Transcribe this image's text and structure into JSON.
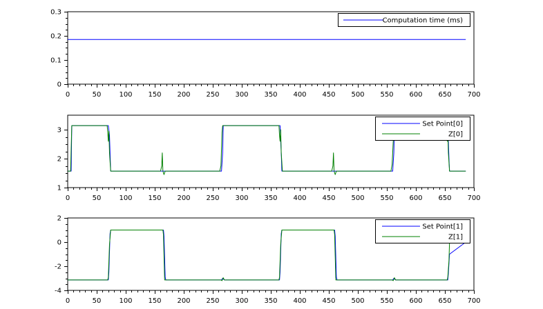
{
  "chart_data": [
    {
      "type": "line",
      "title": "",
      "xlabel": "",
      "ylabel": "",
      "xlim": [
        0,
        700
      ],
      "ylim": [
        0,
        0.3
      ],
      "xticks": [
        0,
        50,
        100,
        150,
        200,
        250,
        300,
        350,
        400,
        450,
        500,
        550,
        600,
        650,
        700
      ],
      "yticks": [
        0,
        0.1,
        0.2,
        0.3
      ],
      "xtick_labels": [
        "0",
        "50",
        "100",
        "150",
        "200",
        "250",
        "300",
        "350",
        "400",
        "450",
        "500",
        "550",
        "600",
        "650",
        "700"
      ],
      "ytick_labels": [
        "0",
        "0.1",
        "0.2",
        "0.3"
      ],
      "legend_position": "top-right",
      "series": [
        {
          "name": "Computation time (ms)",
          "color": "#0000ff",
          "x": [
            0,
            686
          ],
          "y": [
            0.185,
            0.185
          ]
        }
      ]
    },
    {
      "type": "line",
      "title": "",
      "xlabel": "",
      "ylabel": "",
      "xlim": [
        0,
        700
      ],
      "ylim": [
        1,
        3.5
      ],
      "xticks": [
        0,
        50,
        100,
        150,
        200,
        250,
        300,
        350,
        400,
        450,
        500,
        550,
        600,
        650,
        700
      ],
      "yticks": [
        1,
        2,
        3
      ],
      "xtick_labels": [
        "0",
        "50",
        "100",
        "150",
        "200",
        "250",
        "300",
        "350",
        "400",
        "450",
        "500",
        "550",
        "600",
        "650",
        "700"
      ],
      "ytick_labels": [
        "1",
        "2",
        "3"
      ],
      "legend_position": "top-right",
      "series": [
        {
          "name": "Set Point[0]",
          "color": "#0000ff",
          "x": [
            0,
            6,
            7,
            69,
            70,
            72,
            73,
            74,
            265,
            267,
            268,
            366,
            368,
            369,
            560,
            562,
            563,
            655,
            657,
            658,
            686
          ],
          "y": [
            1.57,
            1.57,
            3.14,
            3.14,
            3.14,
            2.8,
            2.2,
            1.57,
            1.57,
            2.2,
            3.14,
            3.14,
            2.2,
            1.57,
            1.57,
            2.2,
            3.14,
            3.14,
            2.0,
            1.57,
            1.57
          ]
        },
        {
          "name": "Z[0]",
          "color": "#008000",
          "x": [
            0,
            5,
            7,
            68,
            69,
            70,
            71,
            72,
            74,
            76,
            160,
            162,
            163,
            164,
            166,
            168,
            262,
            264,
            266,
            267,
            364,
            365,
            366,
            367,
            368,
            370,
            455,
            457,
            458,
            459,
            461,
            463,
            557,
            559,
            561,
            562,
            652,
            653,
            654,
            655,
            656,
            658,
            686
          ],
          "y": [
            1.57,
            1.57,
            3.14,
            3.14,
            2.9,
            2.6,
            2.95,
            2.2,
            1.57,
            1.57,
            1.57,
            1.75,
            2.2,
            1.57,
            1.45,
            1.57,
            1.57,
            1.75,
            2.9,
            3.14,
            3.14,
            2.8,
            2.6,
            3.0,
            2.2,
            1.57,
            1.57,
            1.75,
            2.2,
            1.57,
            1.45,
            1.57,
            1.57,
            1.8,
            2.6,
            3.14,
            3.14,
            2.75,
            2.6,
            2.95,
            2.2,
            1.57,
            1.57
          ]
        }
      ]
    },
    {
      "type": "line",
      "title": "",
      "xlabel": "",
      "ylabel": "",
      "xlim": [
        0,
        700
      ],
      "ylim": [
        -4,
        2
      ],
      "xticks": [
        0,
        50,
        100,
        150,
        200,
        250,
        300,
        350,
        400,
        450,
        500,
        550,
        600,
        650,
        700
      ],
      "yticks": [
        -4,
        -2,
        0,
        2
      ],
      "xtick_labels": [
        "0",
        "50",
        "100",
        "150",
        "200",
        "250",
        "300",
        "350",
        "400",
        "450",
        "500",
        "550",
        "600",
        "650",
        "700"
      ],
      "ytick_labels": [
        "-4",
        "-2",
        "0",
        "2"
      ],
      "legend_position": "top-right",
      "series": [
        {
          "name": "Set Point[1]",
          "color": "#0000ff",
          "x": [
            0,
            70,
            71,
            73,
            74,
            165,
            166,
            168,
            169,
            265,
            267,
            270,
            365,
            366,
            368,
            369,
            460,
            461,
            463,
            464,
            560,
            562,
            565,
            655,
            656,
            658,
            686
          ],
          "y": [
            -3.14,
            -3.14,
            -2.5,
            0.7,
            1.0,
            1.0,
            0.5,
            -2.9,
            -3.14,
            -3.14,
            -3.0,
            -3.14,
            -3.14,
            -2.5,
            0.7,
            1.0,
            1.0,
            0.5,
            -2.9,
            -3.14,
            -3.14,
            -3.0,
            -3.14,
            -3.14,
            -2.6,
            -1.0,
            0.0
          ]
        },
        {
          "name": "Z[1]",
          "color": "#008000",
          "x": [
            0,
            69,
            70,
            72,
            74,
            76,
            164,
            165,
            167,
            169,
            171,
            264,
            266,
            268,
            270,
            272,
            364,
            365,
            367,
            369,
            371,
            459,
            460,
            462,
            464,
            466,
            559,
            561,
            563,
            565,
            567,
            654,
            655,
            657,
            658,
            686
          ],
          "y": [
            -3.14,
            -3.14,
            -2.9,
            -0.2,
            1.0,
            1.0,
            1.0,
            0.6,
            -3.14,
            -3.14,
            -3.14,
            -3.14,
            -3.2,
            -2.95,
            -3.14,
            -3.14,
            -3.14,
            -2.9,
            -0.2,
            1.0,
            1.0,
            1.0,
            0.6,
            -3.14,
            -3.14,
            -3.14,
            -3.14,
            -3.2,
            -2.95,
            -3.14,
            -3.14,
            -3.14,
            -2.9,
            -1.5,
            0.0,
            0.0
          ]
        }
      ]
    }
  ]
}
